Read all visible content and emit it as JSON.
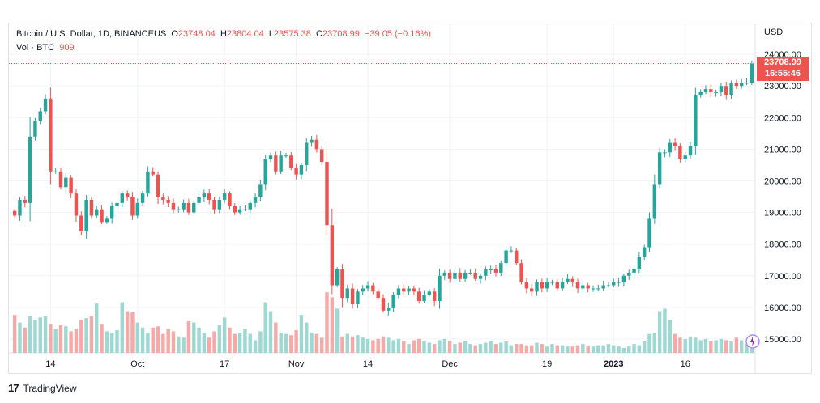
{
  "legend": {
    "symbol": "Bitcoin / U.S. Dollar, 1D, BINANCEUS",
    "open_k": "O",
    "open": "23748.04",
    "high_k": "H",
    "high": "23804.04",
    "low_k": "L",
    "low": "23575.38",
    "close_k": "C",
    "close": "23708.99",
    "change": "−39.05 (−0.16%)",
    "vol_label": "Vol · BTC",
    "vol_value": "909"
  },
  "price_tag": {
    "price": "23708.99",
    "countdown": "16:55:46"
  },
  "axis_unit": "USD",
  "brand": {
    "name": "TradingView"
  },
  "colors": {
    "up": "#26a69a",
    "down": "#ef5350",
    "up_vol": "#9ed8d2",
    "down_vol": "#f6a9a7",
    "grid": "#f0f3fa",
    "axis_text": "#131722"
  },
  "chart_data": {
    "type": "candlestick",
    "title": "Bitcoin / U.S. Dollar, 1D, BINANCEUS",
    "ylabel": "USD",
    "ylim": [
      14600,
      24400
    ],
    "y_ticks": [
      15000,
      16000,
      17000,
      18000,
      19000,
      20000,
      21000,
      22000,
      23000,
      24000
    ],
    "y_tick_labels": [
      "15000.00",
      "16000.00",
      "17000.00",
      "18000.00",
      "19000.00",
      "20000.00",
      "21000.00",
      "22000.00",
      "23000.00",
      "24000.00"
    ],
    "x_ticks": [
      {
        "index": 7,
        "label": "14"
      },
      {
        "index": 24,
        "label": "Oct"
      },
      {
        "index": 41,
        "label": "17"
      },
      {
        "index": 55,
        "label": "Nov"
      },
      {
        "index": 69,
        "label": "14"
      },
      {
        "index": 85,
        "label": "Dec"
      },
      {
        "index": 104,
        "label": "19"
      },
      {
        "index": 117,
        "label": "2023"
      },
      {
        "index": 131,
        "label": "16"
      }
    ],
    "last_price": 23708.99,
    "closes": [
      18900,
      19400,
      19300,
      21400,
      21900,
      22200,
      22600,
      20300,
      20300,
      19800,
      20100,
      19600,
      18900,
      18400,
      19400,
      18900,
      19100,
      18700,
      18800,
      19200,
      19300,
      19600,
      19500,
      18900,
      19300,
      19600,
      20300,
      20200,
      19500,
      19400,
      19300,
      19100,
      19100,
      19300,
      19000,
      19300,
      19500,
      19600,
      19400,
      19100,
      19400,
      19600,
      19200,
      19000,
      19100,
      19100,
      19300,
      19500,
      19900,
      20700,
      20800,
      20300,
      20800,
      20800,
      20400,
      20200,
      20500,
      21200,
      21300,
      21000,
      20600,
      18600,
      16700,
      17200,
      16300,
      16600,
      16100,
      16500,
      16600,
      16700,
      16500,
      16300,
      15900,
      16000,
      16400,
      16600,
      16500,
      16600,
      16500,
      16200,
      16400,
      16500,
      16200,
      17000,
      17100,
      16900,
      17100,
      16900,
      17100,
      17100,
      16900,
      17000,
      17200,
      17200,
      17100,
      17400,
      17800,
      17800,
      17400,
      16800,
      16600,
      16500,
      16800,
      16600,
      16800,
      16800,
      16600,
      16800,
      16900,
      16800,
      16600,
      16700,
      16600,
      16600,
      16600,
      16700,
      16700,
      16800,
      16800,
      17000,
      17100,
      17200,
      17600,
      17900,
      18800,
      19900,
      20900,
      20900,
      21200,
      21100,
      20700,
      20800,
      21100,
      22700,
      22800,
      22900,
      22800,
      22800,
      23000,
      22700,
      23100,
      23000,
      23100,
      23100,
      23700
    ],
    "volumes": [
      60,
      48,
      40,
      58,
      52,
      56,
      58,
      46,
      38,
      44,
      42,
      34,
      38,
      52,
      55,
      58,
      78,
      46,
      34,
      32,
      36,
      80,
      66,
      64,
      48,
      40,
      32,
      40,
      42,
      30,
      38,
      34,
      26,
      24,
      50,
      48,
      40,
      32,
      24,
      34,
      44,
      56,
      40,
      30,
      32,
      38,
      30,
      20,
      34,
      80,
      66,
      48,
      32,
      30,
      28,
      36,
      60,
      48,
      32,
      30,
      24,
      96,
      88,
      70,
      26,
      30,
      26,
      28,
      24,
      22,
      20,
      22,
      26,
      24,
      20,
      22,
      18,
      14,
      20,
      22,
      18,
      16,
      14,
      20,
      22,
      18,
      14,
      16,
      18,
      14,
      12,
      14,
      16,
      18,
      14,
      16,
      18,
      12,
      14,
      14,
      12,
      12,
      16,
      14,
      10,
      14,
      12,
      12,
      10,
      10,
      12,
      14,
      10,
      10,
      12,
      12,
      14,
      12,
      10,
      8,
      10,
      14,
      12,
      18,
      30,
      32,
      66,
      70,
      52,
      30,
      24,
      22,
      26,
      24,
      20,
      22,
      18,
      20,
      22,
      20,
      18,
      24,
      20,
      14,
      10
    ]
  }
}
